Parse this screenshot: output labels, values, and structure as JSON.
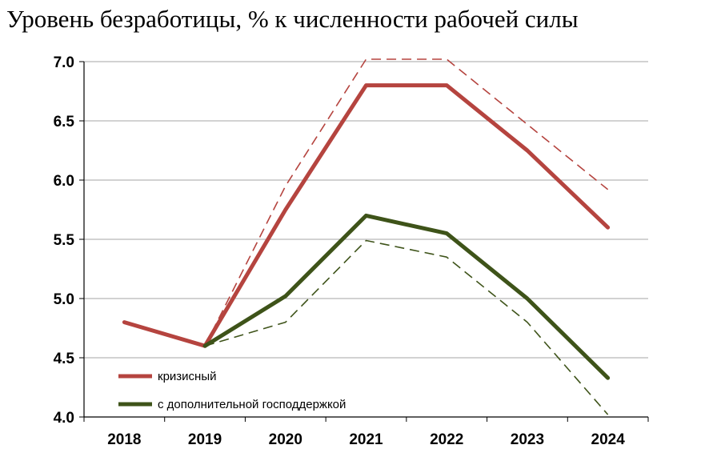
{
  "chart_data": {
    "type": "line",
    "title": "Уровень безработицы, % к численности рабочей силы",
    "xlabel": "",
    "ylabel": "",
    "ylim": [
      4.0,
      7.0
    ],
    "yticks": [
      "7.0",
      "6.5",
      "6.0",
      "5.5",
      "5.0",
      "4.5",
      "4.0"
    ],
    "x": [
      "2018",
      "2019",
      "2020",
      "2021",
      "2022",
      "2023",
      "2024"
    ],
    "grid": true,
    "legend_position": "bottom-left",
    "series": [
      {
        "name": "кризисный",
        "color": "#b5443f",
        "style": "solid",
        "values": [
          4.8,
          4.6,
          5.75,
          6.8,
          6.8,
          6.25,
          5.6
        ]
      },
      {
        "name": "с дополнительной господдержкой",
        "color": "#3e5319",
        "style": "solid",
        "values": [
          null,
          4.6,
          5.02,
          5.7,
          5.55,
          5.0,
          4.33
        ]
      },
      {
        "name": "",
        "color": "#b5443f",
        "style": "dashed",
        "values": [
          null,
          4.6,
          5.95,
          7.02,
          7.02,
          6.47,
          5.92
        ]
      },
      {
        "name": "",
        "color": "#3e5319",
        "style": "dashed",
        "values": [
          null,
          4.6,
          4.8,
          5.49,
          5.35,
          4.8,
          4.02
        ]
      }
    ]
  }
}
